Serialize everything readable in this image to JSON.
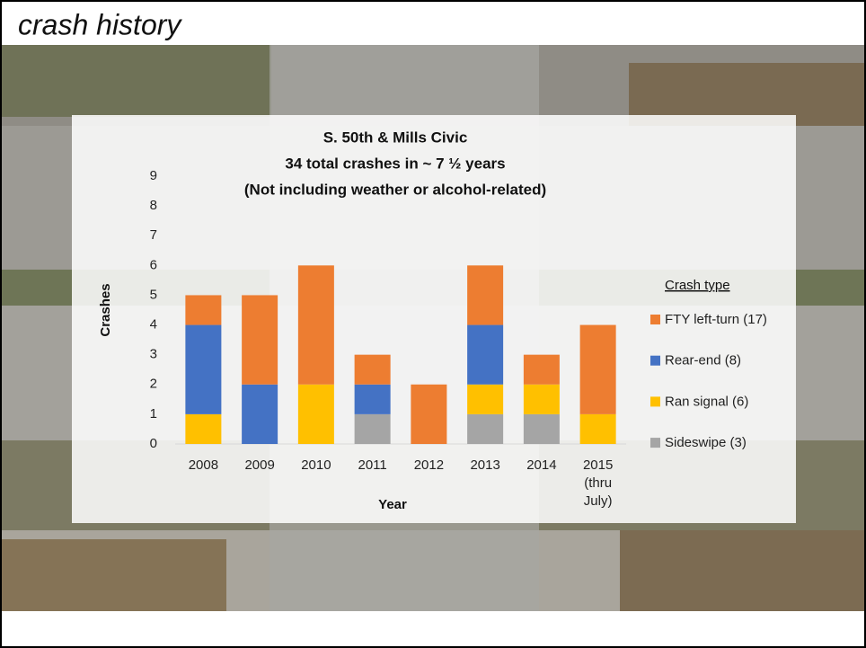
{
  "header": {
    "title": "crash history"
  },
  "chart_data": {
    "type": "stacked-bar",
    "title": [
      "S. 50th & Mills Civic",
      "34 total crashes in ~ 7 ½ years",
      "(Not including weather or alcohol-related)"
    ],
    "x_label": "Year",
    "y_label": "Crashes",
    "legend_title": "Crash type",
    "categories": [
      "2008",
      "2009",
      "2010",
      "2011",
      "2012",
      "2013",
      "2014",
      "2015 (thru July)"
    ],
    "series": [
      {
        "name": "Sideswipe (3)",
        "color": "#a5a5a5",
        "values": [
          0,
          0,
          0,
          1,
          0,
          1,
          1,
          0
        ]
      },
      {
        "name": "Ran signal (6)",
        "color": "#ffc000",
        "values": [
          1,
          0,
          2,
          0,
          0,
          1,
          1,
          1
        ]
      },
      {
        "name": "Rear-end (8)",
        "color": "#4472c4",
        "values": [
          3,
          2,
          0,
          1,
          0,
          2,
          0,
          0
        ]
      },
      {
        "name": "FTY left-turn (17)",
        "color": "#ed7d31",
        "values": [
          1,
          3,
          4,
          1,
          2,
          2,
          1,
          3
        ]
      }
    ],
    "ylim": [
      0,
      9
    ],
    "yticks": [
      0,
      1,
      2,
      3,
      4,
      5,
      6,
      7,
      8,
      9
    ],
    "grid": false
  }
}
